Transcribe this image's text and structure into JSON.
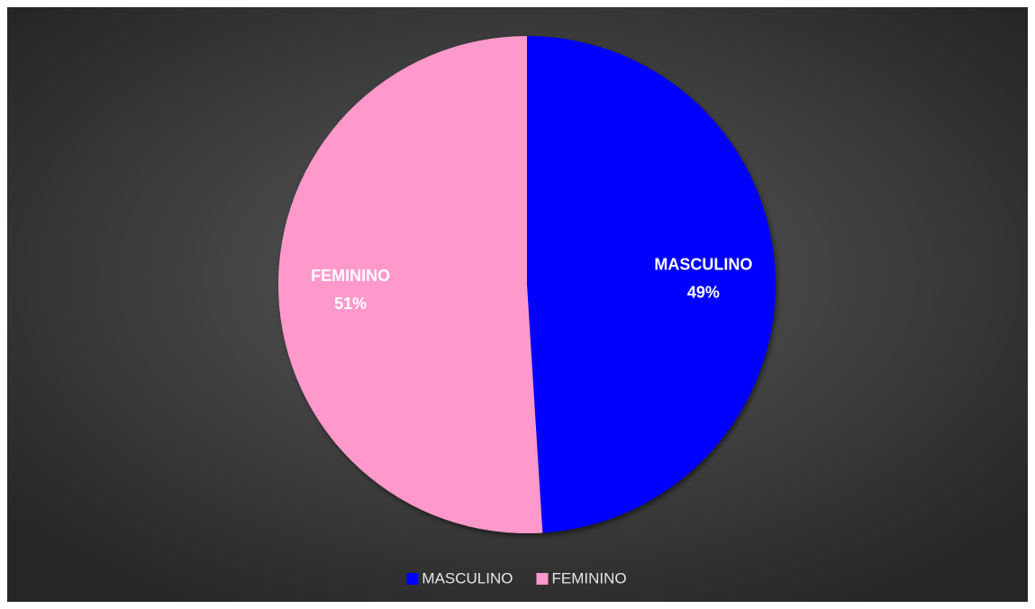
{
  "chart_data": {
    "type": "pie",
    "categories": [
      "MASCULINO",
      "FEMININO"
    ],
    "values": [
      49,
      51
    ],
    "value_labels": [
      "49%",
      "51%"
    ],
    "colors": [
      "#0000ff",
      "#ff99cc"
    ],
    "legend": "bottom"
  }
}
